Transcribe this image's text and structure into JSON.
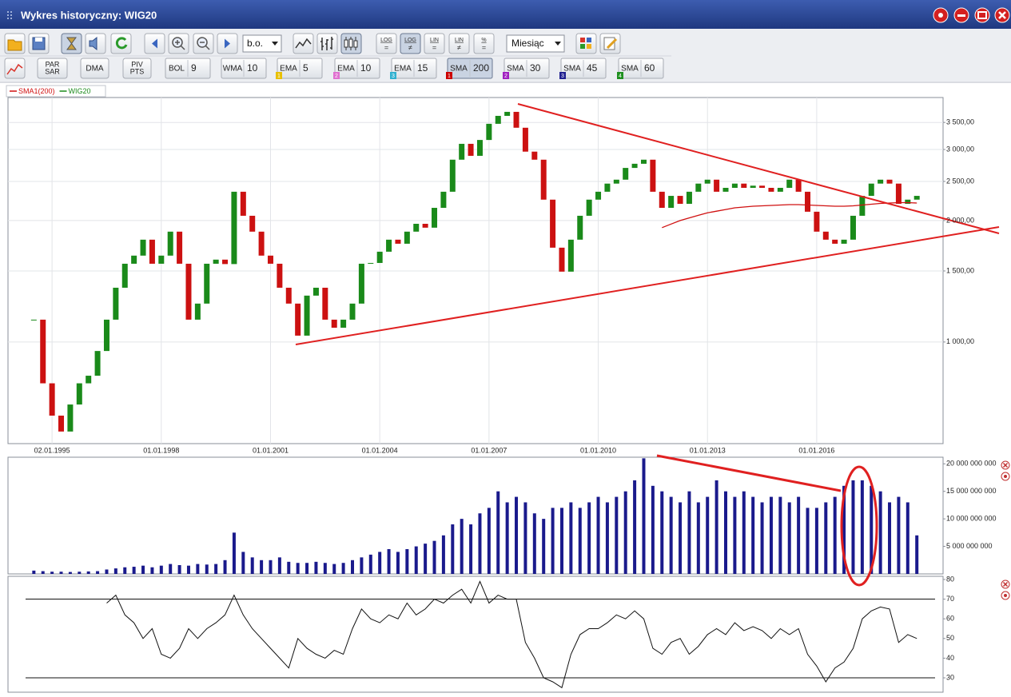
{
  "window": {
    "title": "Wykres historyczny: WIG20"
  },
  "toolbar": {
    "style_select": "b.o.",
    "scale_buttons": [
      {
        "top": "LOG",
        "bottom": "="
      },
      {
        "top": "LOG",
        "bottom": "≠",
        "active": true
      },
      {
        "top": "LIN",
        "bottom": "="
      },
      {
        "top": "LIN",
        "bottom": "≠"
      },
      {
        "top": "%",
        "bottom": "="
      }
    ],
    "interval_select": "Miesiąc",
    "text_buttons": [
      [
        "PAR",
        "SAR"
      ],
      [
        "DMA"
      ],
      [
        "PIV",
        "PTS"
      ]
    ],
    "indicators": [
      {
        "name": "BOL",
        "param": 9
      },
      {
        "name": "WMA",
        "param": 10
      },
      {
        "name": "EMA",
        "param": 5,
        "slot": 1,
        "slot_color": "#e8c000"
      },
      {
        "name": "EMA",
        "param": 10,
        "slot": 2,
        "slot_color": "#e070d0"
      },
      {
        "name": "EMA",
        "param": 15,
        "slot": 3,
        "slot_color": "#30b0d0"
      },
      {
        "name": "SMA",
        "param": 200,
        "slot": 1,
        "slot_color": "#cc0000",
        "active": true
      },
      {
        "name": "SMA",
        "param": 30,
        "slot": 2,
        "slot_color": "#a020c0"
      },
      {
        "name": "SMA",
        "param": 45,
        "slot": 3,
        "slot_color": "#202090"
      },
      {
        "name": "SMA",
        "param": 60,
        "slot": 4,
        "slot_color": "#209020"
      }
    ]
  },
  "chart_data": [
    {
      "type": "candlestick",
      "log_scale": true,
      "grid": true,
      "legend": "top-left",
      "xlim": [
        1993.79,
        2019.47
      ],
      "ylim": [
        560,
        4035
      ],
      "xticks": [
        {
          "value": 1995,
          "label": "02.01.1995"
        },
        {
          "value": 1998,
          "label": "01.01.1998"
        },
        {
          "value": 2001,
          "label": "01.01.2001"
        },
        {
          "value": 2004,
          "label": "01.01.2004"
        },
        {
          "value": 2007,
          "label": "01.01.2007"
        },
        {
          "value": 2010,
          "label": "01.01.2010"
        },
        {
          "value": 2013,
          "label": "01.01.2013"
        },
        {
          "value": 2016,
          "label": "01.01.2016"
        }
      ],
      "yticks": [
        {
          "value": 1000,
          "label": "1 000,00"
        },
        {
          "value": 1500,
          "label": "1 500,00"
        },
        {
          "value": 2000,
          "label": "2 000,00"
        },
        {
          "value": 2500,
          "label": "2 500,00"
        },
        {
          "value": 3000,
          "label": "3 000,00"
        },
        {
          "value": 3500,
          "label": "3 500,00"
        }
      ],
      "x": [
        1994.5,
        1994.75,
        1995,
        1995.25,
        1995.5,
        1995.75,
        1996,
        1996.25,
        1996.5,
        1996.75,
        1997,
        1997.25,
        1997.5,
        1997.75,
        1998,
        1998.25,
        1998.5,
        1998.75,
        1999,
        1999.25,
        1999.5,
        1999.75,
        2000,
        2000.25,
        2000.5,
        2000.75,
        2001,
        2001.25,
        2001.5,
        2001.75,
        2002,
        2002.25,
        2002.5,
        2002.75,
        2003,
        2003.25,
        2003.5,
        2003.75,
        2004,
        2004.25,
        2004.5,
        2004.75,
        2005,
        2005.25,
        2005.5,
        2005.75,
        2006,
        2006.25,
        2006.5,
        2006.75,
        2007,
        2007.25,
        2007.5,
        2007.75,
        2008,
        2008.25,
        2008.5,
        2008.75,
        2009,
        2009.25,
        2009.5,
        2009.75,
        2010,
        2010.25,
        2010.5,
        2010.75,
        2011,
        2011.25,
        2011.5,
        2011.75,
        2012,
        2012.25,
        2012.5,
        2012.75,
        2013,
        2013.25,
        2013.5,
        2013.75,
        2014,
        2014.25,
        2014.5,
        2014.75,
        2015,
        2015.25,
        2015.5,
        2015.75,
        2016,
        2016.25,
        2016.5,
        2016.75,
        2017,
        2017.25,
        2017.5,
        2017.75,
        2018,
        2018.25,
        2018.5,
        2018.75
      ],
      "series": [
        {
          "name": "SMA1(200)",
          "kind": "line",
          "color": "#d01010",
          "values": [
            null,
            null,
            null,
            null,
            null,
            null,
            null,
            null,
            null,
            null,
            null,
            null,
            null,
            null,
            null,
            null,
            null,
            null,
            null,
            null,
            null,
            null,
            null,
            null,
            null,
            null,
            null,
            null,
            null,
            null,
            null,
            null,
            null,
            null,
            null,
            null,
            null,
            null,
            null,
            null,
            null,
            null,
            null,
            null,
            null,
            null,
            null,
            null,
            null,
            null,
            null,
            null,
            null,
            null,
            null,
            null,
            null,
            null,
            null,
            null,
            null,
            null,
            null,
            null,
            null,
            null,
            null,
            null,
            null,
            1920,
            1960,
            2000,
            2030,
            2060,
            2090,
            2110,
            2130,
            2150,
            2160,
            2170,
            2175,
            2180,
            2185,
            2190,
            2190,
            2185,
            2180,
            2175,
            2170,
            2170,
            2175,
            2185,
            2195,
            2205,
            2210,
            2215,
            2215,
            2210
          ]
        },
        {
          "name": "WIG20",
          "kind": "candlestick",
          "color": "#1a8a1a",
          "down_color": "#cc1111",
          "values": [
            1136,
            790,
            657,
            600,
            700,
            790,
            825,
            950,
            1136,
            1363,
            1563,
            1637,
            1793,
            1563,
            1637,
            1877,
            1563,
            1136,
            1245,
            1563,
            1600,
            1560,
            2357,
            2055,
            1877,
            1637,
            1563,
            1363,
            1245,
            1037,
            1303,
            1363,
            1136,
            1085,
            1136,
            1245,
            1563,
            1570,
            1674,
            1793,
            1752,
            1877,
            1963,
            1920,
            2150,
            2357,
            2830,
            3098,
            2893,
            3167,
            3473,
            3634,
            3718,
            3396,
            2963,
            2830,
            2253,
            1713,
            1494,
            1793,
            2055,
            2253,
            2357,
            2469,
            2525,
            2700,
            2765,
            2830,
            2357,
            2150,
            2302,
            2200,
            2357,
            2469,
            2525,
            2357,
            2410,
            2469,
            2410,
            2440,
            2410,
            2357,
            2410,
            2525,
            2357,
            2103,
            1877,
            1793,
            1752,
            1793,
            2055,
            2302,
            2469,
            2525,
            2469,
            2200,
            2253,
            2302
          ]
        }
      ]
    },
    {
      "type": "bar",
      "color": "#1a1a8c",
      "xlim": [
        1993.79,
        2019.47
      ],
      "ylim": [
        0,
        21200000000
      ],
      "yticks": [
        {
          "value": 5000000000.0,
          "label": "5 000 000 000"
        },
        {
          "value": 10000000000.0,
          "label": "10 000 000 000"
        },
        {
          "value": 15000000000.0,
          "label": "15 000 000 000"
        },
        {
          "value": 20000000000.0,
          "label": "20 000 000 000"
        }
      ],
      "x": [
        1994.5,
        1994.75,
        1995,
        1995.25,
        1995.5,
        1995.75,
        1996,
        1996.25,
        1996.5,
        1996.75,
        1997,
        1997.25,
        1997.5,
        1997.75,
        1998,
        1998.25,
        1998.5,
        1998.75,
        1999,
        1999.25,
        1999.5,
        1999.75,
        2000,
        2000.25,
        2000.5,
        2000.75,
        2001,
        2001.25,
        2001.5,
        2001.75,
        2002,
        2002.25,
        2002.5,
        2002.75,
        2003,
        2003.25,
        2003.5,
        2003.75,
        2004,
        2004.25,
        2004.5,
        2004.75,
        2005,
        2005.25,
        2005.5,
        2005.75,
        2006,
        2006.25,
        2006.5,
        2006.75,
        2007,
        2007.25,
        2007.5,
        2007.75,
        2008,
        2008.25,
        2008.5,
        2008.75,
        2009,
        2009.25,
        2009.5,
        2009.75,
        2010,
        2010.25,
        2010.5,
        2010.75,
        2011,
        2011.25,
        2011.5,
        2011.75,
        2012,
        2012.25,
        2012.5,
        2012.75,
        2013,
        2013.25,
        2013.5,
        2013.75,
        2014,
        2014.25,
        2014.5,
        2014.75,
        2015,
        2015.25,
        2015.5,
        2015.75,
        2016,
        2016.25,
        2016.5,
        2016.75,
        2017,
        2017.25,
        2017.5,
        2017.75,
        2018,
        2018.25,
        2018.5,
        2018.75
      ],
      "values": [
        600000000.0,
        500000000.0,
        400000000.0,
        400000000.0,
        350000000.0,
        400000000.0,
        450000000.0,
        500000000.0,
        800000000.0,
        1000000000.0,
        1200000000.0,
        1300000000.0,
        1500000000.0,
        1200000000.0,
        1500000000.0,
        1800000000.0,
        1600000000.0,
        1500000000.0,
        1800000000.0,
        1700000000.0,
        1800000000.0,
        2500000000.0,
        7500000000.0,
        4000000000.0,
        3000000000.0,
        2500000000.0,
        2500000000.0,
        3000000000.0,
        2200000000.0,
        2000000000.0,
        2000000000.0,
        2200000000.0,
        2000000000.0,
        1800000000.0,
        2000000000.0,
        2500000000.0,
        3000000000.0,
        3500000000.0,
        4000000000.0,
        4500000000.0,
        4000000000.0,
        4500000000.0,
        5000000000.0,
        5500000000.0,
        6000000000.0,
        7000000000.0,
        9000000000.0,
        10000000000.0,
        9000000000.0,
        11000000000.0,
        12000000000.0,
        15000000000.0,
        13000000000.0,
        14000000000.0,
        13000000000.0,
        11000000000.0,
        10000000000.0,
        12000000000.0,
        12000000000.0,
        13000000000.0,
        12000000000.0,
        13000000000.0,
        14000000000.0,
        13000000000.0,
        14000000000.0,
        15000000000.0,
        17000000000.0,
        21000000000.0,
        16000000000.0,
        15000000000.0,
        14000000000.0,
        13000000000.0,
        15000000000.0,
        13000000000.0,
        14000000000.0,
        17000000000.0,
        15000000000.0,
        14000000000.0,
        15000000000.0,
        14000000000.0,
        13000000000.0,
        14000000000.0,
        14000000000.0,
        13000000000.0,
        14000000000.0,
        12000000000.0,
        12000000000.0,
        13000000000.0,
        14000000000.0,
        16000000000.0,
        17000000000.0,
        17000000000.0,
        16000000000.0,
        15000000000.0,
        13000000000.0,
        14000000000.0,
        13000000000.0,
        7000000000.0
      ]
    },
    {
      "type": "line",
      "color": "#111111",
      "xlim": [
        1993.79,
        2019.47
      ],
      "ylim": [
        22.7,
        81.6
      ],
      "yticks": [
        30,
        40,
        50,
        60,
        70,
        80
      ],
      "levels": [
        70,
        30
      ],
      "x": [
        1994.5,
        1994.75,
        1995,
        1995.25,
        1995.5,
        1995.75,
        1996,
        1996.25,
        1996.5,
        1996.75,
        1997,
        1997.25,
        1997.5,
        1997.75,
        1998,
        1998.25,
        1998.5,
        1998.75,
        1999,
        1999.25,
        1999.5,
        1999.75,
        2000,
        2000.25,
        2000.5,
        2000.75,
        2001,
        2001.25,
        2001.5,
        2001.75,
        2002,
        2002.25,
        2002.5,
        2002.75,
        2003,
        2003.25,
        2003.5,
        2003.75,
        2004,
        2004.25,
        2004.5,
        2004.75,
        2005,
        2005.25,
        2005.5,
        2005.75,
        2006,
        2006.25,
        2006.5,
        2006.75,
        2007,
        2007.25,
        2007.5,
        2007.75,
        2008,
        2008.25,
        2008.5,
        2008.75,
        2009,
        2009.25,
        2009.5,
        2009.75,
        2010,
        2010.25,
        2010.5,
        2010.75,
        2011,
        2011.25,
        2011.5,
        2011.75,
        2012,
        2012.25,
        2012.5,
        2012.75,
        2013,
        2013.25,
        2013.5,
        2013.75,
        2014,
        2014.25,
        2014.5,
        2014.75,
        2015,
        2015.25,
        2015.5,
        2015.75,
        2016,
        2016.25,
        2016.5,
        2016.75,
        2017,
        2017.25,
        2017.5,
        2017.75,
        2018,
        2018.25,
        2018.5,
        2018.75
      ],
      "values": [
        null,
        null,
        null,
        null,
        null,
        null,
        null,
        null,
        68,
        72,
        62,
        58,
        50,
        55,
        42,
        40,
        45,
        55,
        50,
        55,
        58,
        62,
        72,
        62,
        55,
        50,
        45,
        40,
        35,
        50,
        45,
        42,
        40,
        44,
        42,
        55,
        65,
        60,
        58,
        62,
        60,
        68,
        62,
        65,
        70,
        68,
        72,
        75,
        68,
        79,
        68,
        72,
        70,
        70,
        48,
        40,
        30,
        28,
        25,
        42,
        52,
        55,
        55,
        58,
        62,
        60,
        64,
        60,
        45,
        42,
        48,
        50,
        42,
        46,
        52,
        55,
        52,
        58,
        54,
        56,
        54,
        50,
        55,
        52,
        55,
        42,
        36,
        28,
        35,
        38,
        45,
        60,
        64,
        66,
        65,
        48,
        52,
        50
      ]
    }
  ]
}
